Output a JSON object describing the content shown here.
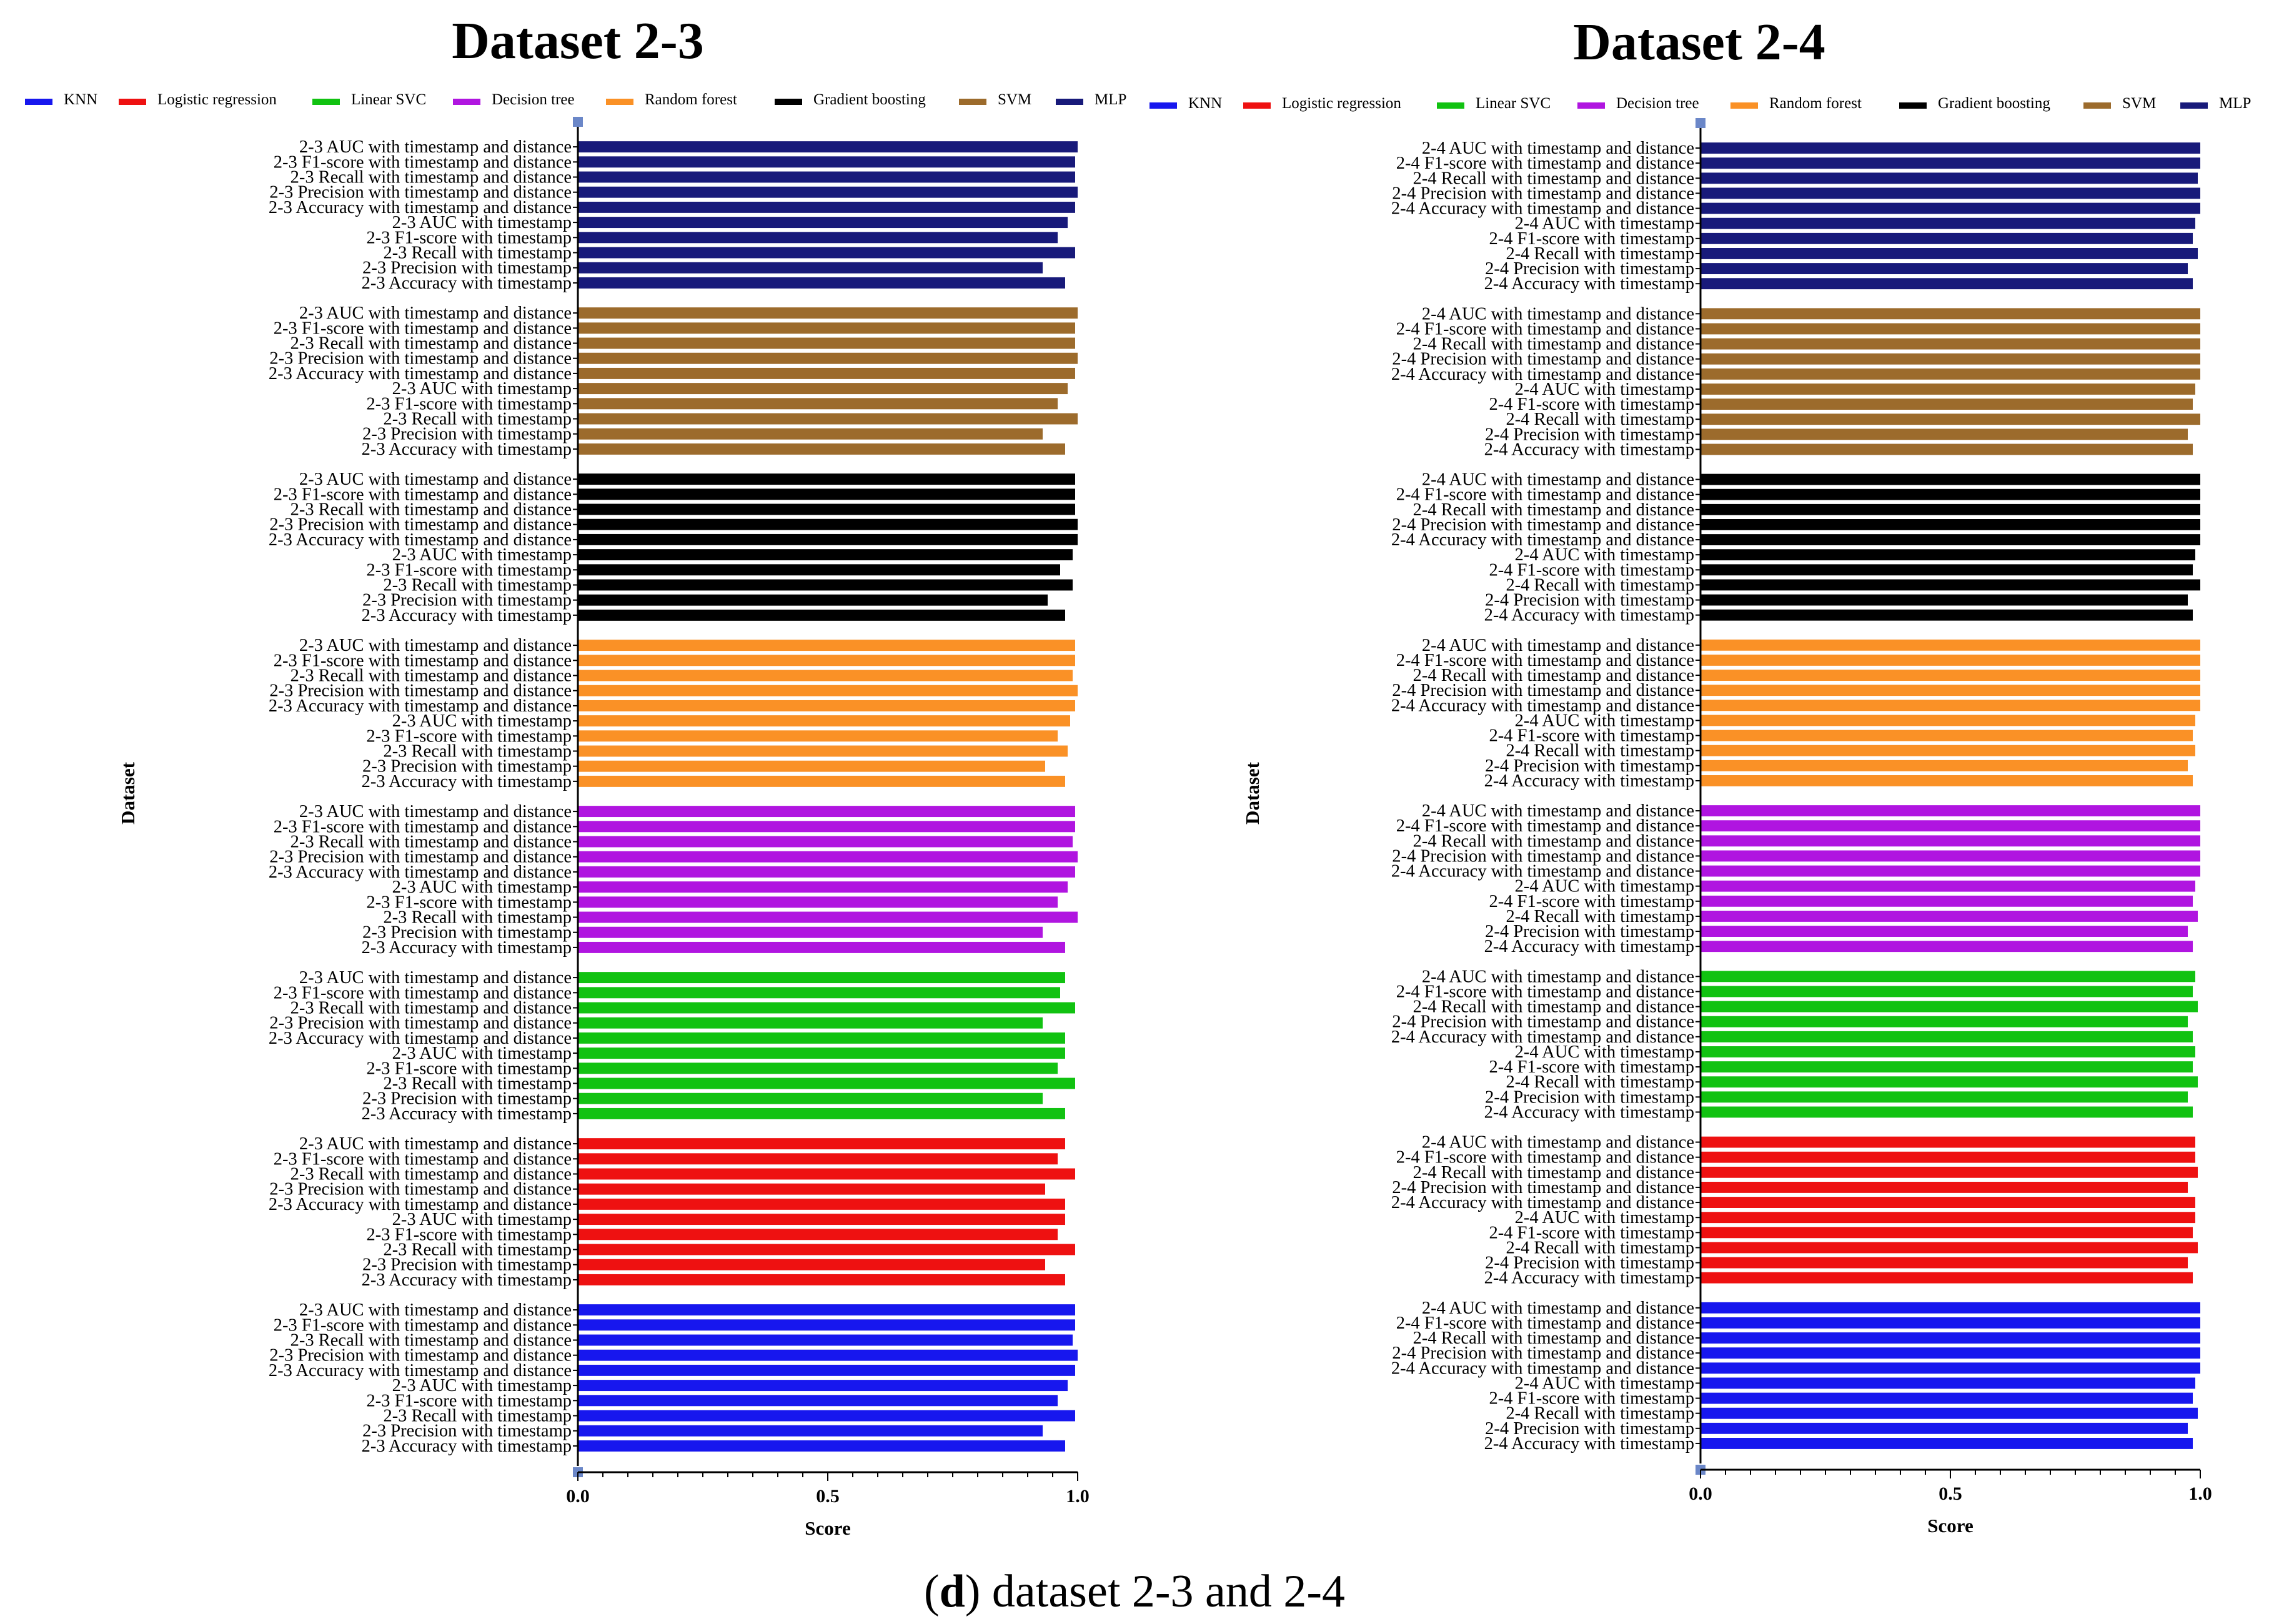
{
  "caption": {
    "letter": "d",
    "text": ") dataset 2-3 and 2-4",
    "open": "("
  },
  "models": [
    {
      "name": "KNN",
      "color": "#1717ee"
    },
    {
      "name": "Logistic regression",
      "color": "#ee1111"
    },
    {
      "name": "Linear SVC",
      "color": "#11c211"
    },
    {
      "name": "Decision tree",
      "color": "#b015e0"
    },
    {
      "name": "Random forest",
      "color": "#fa9126"
    },
    {
      "name": "Gradient boosting",
      "color": "#000000"
    },
    {
      "name": "SVM",
      "color": "#9c6b2c"
    },
    {
      "name": "MLP",
      "color": "#181a7a"
    }
  ],
  "chart_data": [
    {
      "type": "bar",
      "orientation": "horizontal",
      "title": "Dataset 2-3",
      "xlabel": "Score",
      "ylabel": "Dataset",
      "xlim": [
        0,
        1
      ],
      "xticks": [
        "0.0",
        "0.5",
        "1.0"
      ],
      "legend_position": "top",
      "group_order_top_to_bottom": [
        "MLP",
        "SVM",
        "Gradient boosting",
        "Random forest",
        "Decision tree",
        "Linear SVC",
        "Logistic regression",
        "KNN"
      ],
      "categories": [
        "2-3 AUC with timestamp and distance",
        "2-3 F1-score with timestamp and distance",
        "2-3 Recall with timestamp and distance",
        "2-3 Precision with timestamp and distance",
        "2-3 Accuracy with timestamp and distance",
        "2-3 AUC with timestamp",
        "2-3 F1-score with timestamp",
        "2-3 Recall with timestamp",
        "2-3 Precision with timestamp",
        "2-3 Accuracy with timestamp"
      ],
      "series": [
        {
          "name": "MLP",
          "values": [
            1.0,
            0.995,
            0.995,
            1.0,
            0.995,
            0.98,
            0.96,
            0.995,
            0.93,
            0.975
          ]
        },
        {
          "name": "SVM",
          "values": [
            1.0,
            0.995,
            0.995,
            1.0,
            0.995,
            0.98,
            0.96,
            1.0,
            0.93,
            0.975
          ]
        },
        {
          "name": "Gradient boosting",
          "values": [
            0.995,
            0.995,
            0.995,
            1.0,
            1.0,
            0.99,
            0.965,
            0.99,
            0.94,
            0.975
          ]
        },
        {
          "name": "Random forest",
          "values": [
            0.995,
            0.995,
            0.99,
            1.0,
            0.995,
            0.985,
            0.96,
            0.98,
            0.935,
            0.975
          ]
        },
        {
          "name": "Decision tree",
          "values": [
            0.995,
            0.995,
            0.99,
            1.0,
            0.995,
            0.98,
            0.96,
            1.0,
            0.93,
            0.975
          ]
        },
        {
          "name": "Linear SVC",
          "values": [
            0.975,
            0.965,
            0.995,
            0.93,
            0.975,
            0.975,
            0.96,
            0.995,
            0.93,
            0.975
          ]
        },
        {
          "name": "Logistic regression",
          "values": [
            0.975,
            0.96,
            0.995,
            0.935,
            0.975,
            0.975,
            0.96,
            0.995,
            0.935,
            0.975
          ]
        },
        {
          "name": "KNN",
          "values": [
            0.995,
            0.995,
            0.99,
            1.0,
            0.995,
            0.98,
            0.96,
            0.995,
            0.93,
            0.975
          ]
        }
      ]
    },
    {
      "type": "bar",
      "orientation": "horizontal",
      "title": "Dataset 2-4",
      "xlabel": "Score",
      "ylabel": "Dataset",
      "xlim": [
        0,
        1
      ],
      "xticks": [
        "0.0",
        "0.5",
        "1.0"
      ],
      "legend_position": "top",
      "group_order_top_to_bottom": [
        "MLP",
        "SVM",
        "Gradient boosting",
        "Random forest",
        "Decision tree",
        "Linear SVC",
        "Logistic regression",
        "KNN"
      ],
      "categories": [
        "2-4 AUC with timestamp and distance",
        "2-4 F1-score with timestamp and distance",
        "2-4 Recall with timestamp and distance",
        "2-4 Precision with timestamp and distance",
        "2-4 Accuracy with timestamp and distance",
        "2-4 AUC with timestamp",
        "2-4 F1-score with timestamp",
        "2-4 Recall with timestamp",
        "2-4 Precision with timestamp",
        "2-4 Accuracy with timestamp"
      ],
      "series": [
        {
          "name": "MLP",
          "values": [
            1.0,
            1.0,
            0.995,
            1.0,
            1.0,
            0.99,
            0.985,
            0.995,
            0.975,
            0.985
          ]
        },
        {
          "name": "SVM",
          "values": [
            1.0,
            1.0,
            1.0,
            1.0,
            1.0,
            0.99,
            0.985,
            1.0,
            0.975,
            0.985
          ]
        },
        {
          "name": "Gradient boosting",
          "values": [
            1.0,
            1.0,
            1.0,
            1.0,
            1.0,
            0.99,
            0.985,
            1.0,
            0.975,
            0.985
          ]
        },
        {
          "name": "Random forest",
          "values": [
            1.0,
            1.0,
            1.0,
            1.0,
            1.0,
            0.99,
            0.985,
            0.99,
            0.975,
            0.985
          ]
        },
        {
          "name": "Decision tree",
          "values": [
            1.0,
            1.0,
            1.0,
            1.0,
            1.0,
            0.99,
            0.985,
            0.995,
            0.975,
            0.985
          ]
        },
        {
          "name": "Linear SVC",
          "values": [
            0.99,
            0.985,
            0.995,
            0.975,
            0.985,
            0.99,
            0.985,
            0.995,
            0.975,
            0.985
          ]
        },
        {
          "name": "Logistic regression",
          "values": [
            0.99,
            0.99,
            0.995,
            0.975,
            0.99,
            0.99,
            0.985,
            0.995,
            0.975,
            0.985
          ]
        },
        {
          "name": "KNN",
          "values": [
            1.0,
            1.0,
            1.0,
            1.0,
            1.0,
            0.99,
            0.985,
            0.995,
            0.975,
            0.985
          ]
        }
      ]
    }
  ]
}
